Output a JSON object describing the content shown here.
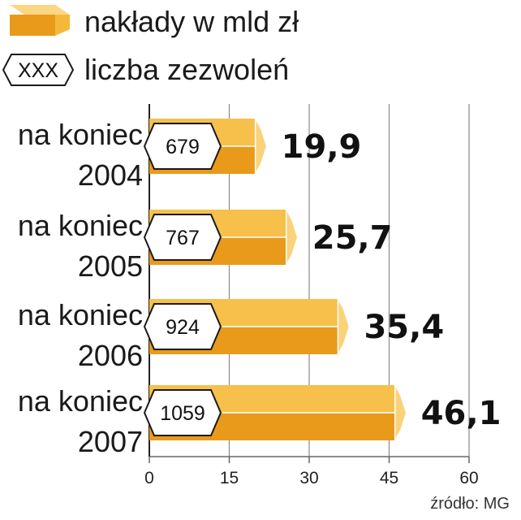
{
  "chart_data": {
    "type": "bar",
    "orientation": "horizontal",
    "categories": [
      [
        "na koniec",
        "2004"
      ],
      [
        "na koniec",
        "2005"
      ],
      [
        "na koniec",
        "2006"
      ],
      [
        "na koniec",
        "2007"
      ]
    ],
    "series": [
      {
        "name": "nakłady w mld zł",
        "values": [
          19.9,
          25.7,
          35.4,
          46.1
        ],
        "value_labels": [
          "19,9",
          "25,7",
          "35,4",
          "46,1"
        ]
      },
      {
        "name": "liczba zezwoleń",
        "values": [
          679,
          767,
          924,
          1059
        ]
      }
    ],
    "xlim": [
      0,
      60
    ],
    "xticks": [
      0,
      15,
      30,
      45,
      60
    ],
    "grid": true,
    "legend": {
      "position": "top-left",
      "bar_entry": "nakłady w mld zł",
      "badge_entry": "liczba zezwoleń",
      "badge_symbol": "XXX"
    },
    "source": "źródło: MG"
  },
  "colors": {
    "bar_top": "#f6c04a",
    "bar_bottom": "#e99a1b",
    "bar_end": "#f9d27a",
    "bar_edge": "#ffffff",
    "grid": "#8a8a8a",
    "axis": "#666666",
    "text": "#111111"
  }
}
